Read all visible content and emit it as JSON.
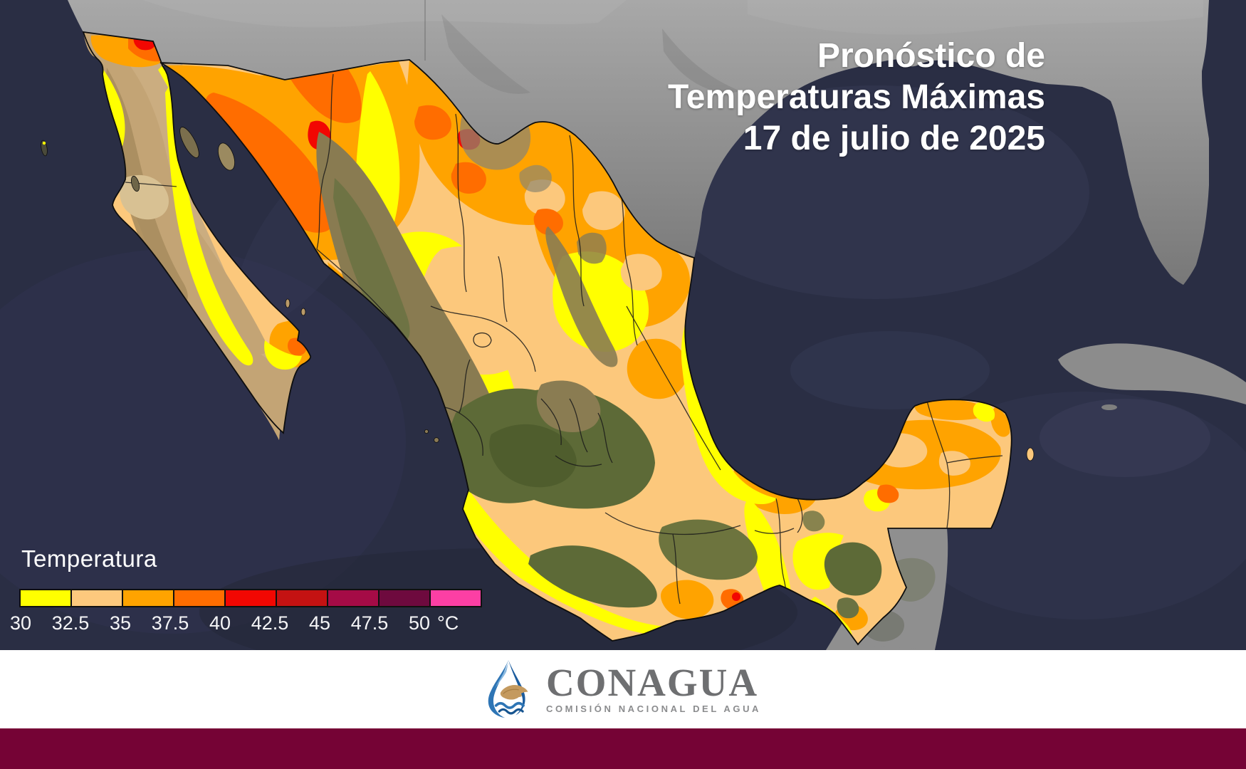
{
  "header": {
    "title_lines": [
      "Pronóstico de",
      "Temperaturas Máximas",
      "17 de julio de 2025"
    ]
  },
  "legend": {
    "label": "Temperatura",
    "unit": "°C",
    "stops": [
      {
        "value": "30",
        "color": "#ffff00"
      },
      {
        "value": "32.5",
        "color": "#fdc97d"
      },
      {
        "value": "35",
        "color": "#ffa300"
      },
      {
        "value": "37.5",
        "color": "#ff6d00"
      },
      {
        "value": "40",
        "color": "#f20702"
      },
      {
        "value": "42.5",
        "color": "#c41212"
      },
      {
        "value": "45",
        "color": "#a50b46"
      },
      {
        "value": "47.5",
        "color": "#6e0a3e"
      },
      {
        "value": "50",
        "color": "#fc3fa4"
      }
    ]
  },
  "footer": {
    "org": "CONAGUA",
    "subtitle": "COMISIÓN NACIONAL DEL AGUA"
  },
  "colors": {
    "ocean": "#2a2e44",
    "us_land": "#8f8f8f",
    "title_text": "#ffffff",
    "bottom_bar": "#750335",
    "logo_blue": "#2e75b5",
    "logo_gold": "#c49a5f",
    "org_text": "#6e6f71",
    "map_outline": "#0e0e0e"
  }
}
